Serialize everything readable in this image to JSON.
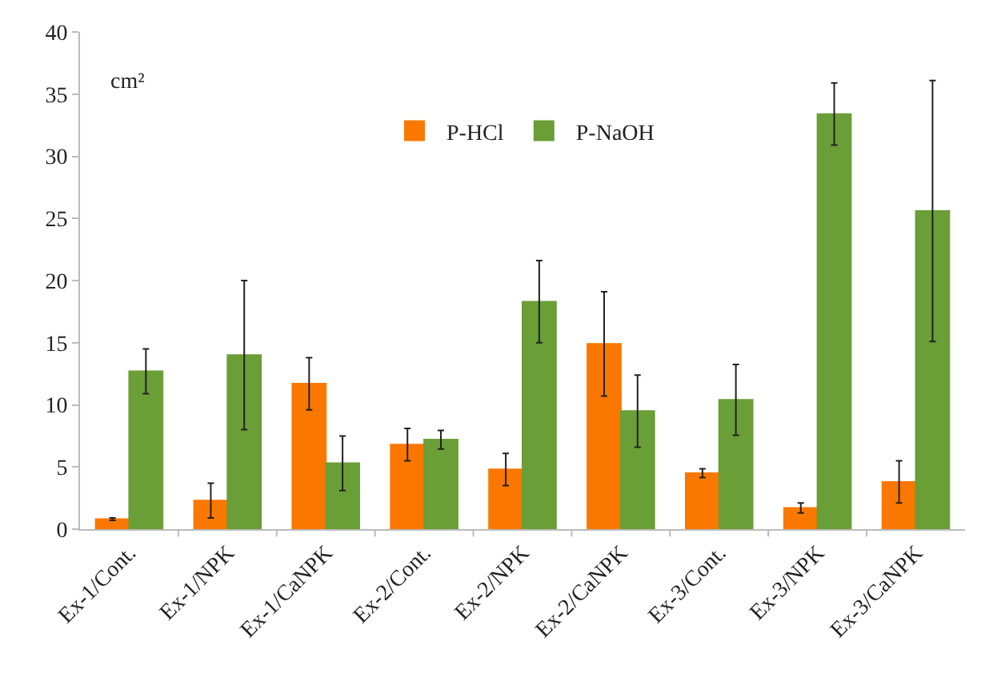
{
  "chart_data": {
    "type": "bar",
    "categories": [
      "Ex-1/Cont.",
      "Ex-1/NPK",
      "Ex-1/CaNPK",
      "Ex-2/Cont.",
      "Ex-2/NPK",
      "Ex-2/CaNPK",
      "Ex-3/Cont.",
      "Ex-3/NPK",
      "Ex-3/CaNPK"
    ],
    "series": [
      {
        "name": "P-HCl",
        "color": "#fa7800",
        "values": [
          0.8,
          2.3,
          11.7,
          6.8,
          4.8,
          14.9,
          4.5,
          1.7,
          3.8
        ],
        "errors": [
          0.1,
          1.4,
          2.1,
          1.3,
          1.3,
          4.2,
          0.35,
          0.4,
          1.7
        ]
      },
      {
        "name": "P-NaOH",
        "color": "#6a9e36",
        "values": [
          12.7,
          14.0,
          5.3,
          7.2,
          18.3,
          9.5,
          10.4,
          33.4,
          25.6
        ],
        "errors": [
          1.8,
          6,
          2.2,
          0.75,
          3.3,
          2.9,
          2.85,
          2.5,
          10.5
        ]
      }
    ],
    "annotations": [
      "cm²"
    ],
    "ylim": [
      0,
      40
    ],
    "yticks": [
      0,
      5,
      10,
      15,
      20,
      25,
      30,
      35,
      40
    ],
    "grid": false,
    "legend": "top"
  }
}
